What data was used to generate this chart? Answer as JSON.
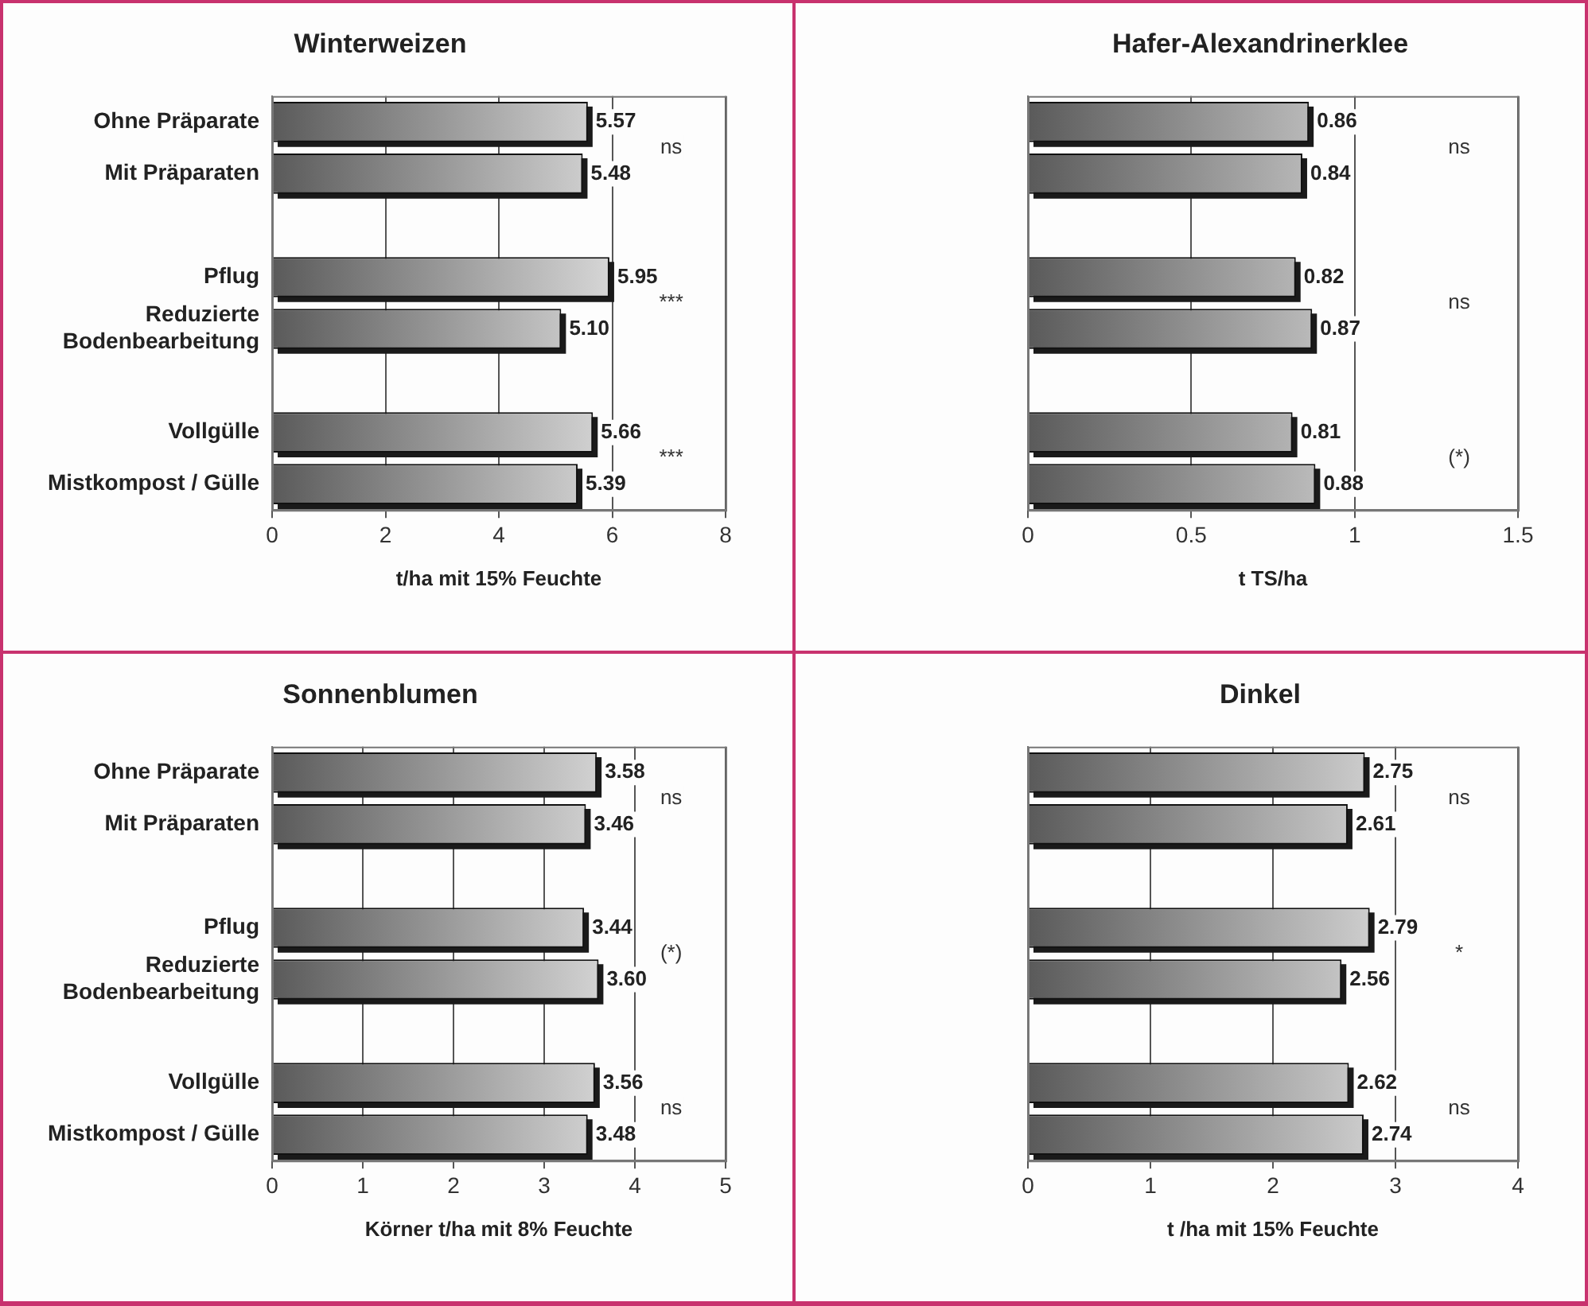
{
  "chart_data": [
    {
      "type": "bar",
      "orientation": "horizontal",
      "title": "Winterweizen",
      "xlabel": "t/ha mit 15% Feuchte",
      "categories": [
        "Ohne Präparate",
        "Mit Präparaten",
        null,
        "Pflug",
        "Reduzierte Bodenbearbeitung",
        null,
        "Vollgülle",
        "Mistkompost / Gülle"
      ],
      "values": [
        5.57,
        5.48,
        null,
        5.95,
        5.1,
        null,
        5.66,
        5.39
      ],
      "value_labels": [
        "5.57",
        "5.48",
        null,
        "5.95",
        "5.10",
        null,
        "5.66",
        "5.39"
      ],
      "color": "#c8c8c8",
      "xlim": [
        0,
        8
      ],
      "xticks": [
        0,
        2,
        4,
        6,
        8
      ],
      "grid": "x",
      "annotations": [
        "ns",
        "***",
        "***"
      ]
    },
    {
      "type": "bar",
      "orientation": "horizontal",
      "title": "Hafer-Alexandrinerklee",
      "xlabel": "t TS/ha",
      "categories": [
        null,
        null,
        null,
        null,
        null,
        null,
        null,
        null
      ],
      "values": [
        0.86,
        0.84,
        null,
        0.82,
        0.87,
        null,
        0.81,
        0.88
      ],
      "value_labels": [
        "0.86",
        "0.84",
        null,
        "0.82",
        "0.87",
        null,
        "0.81",
        "0.88"
      ],
      "color": "#c8c8c8",
      "xlim": [
        0,
        1.5
      ],
      "xticks": [
        0,
        0.5,
        1,
        1.5
      ],
      "grid": "x",
      "annotations": [
        "ns",
        "ns",
        "(*)"
      ]
    },
    {
      "type": "bar",
      "orientation": "horizontal",
      "title": "Sonnenblumen",
      "xlabel": "Körner t/ha mit 8% Feuchte",
      "categories": [
        "Ohne Präparate",
        "Mit Präparaten",
        null,
        "Pflug",
        "Reduzierte Bodenbearbeitung",
        null,
        "Vollgülle",
        "Mistkompost / Gülle"
      ],
      "values": [
        3.58,
        3.46,
        null,
        3.44,
        3.6,
        null,
        3.56,
        3.48
      ],
      "value_labels": [
        "3.58",
        "3.46",
        null,
        "3.44",
        "3.60",
        null,
        "3.56",
        "3.48"
      ],
      "color": "#c8c8c8",
      "xlim": [
        0,
        5
      ],
      "xticks": [
        0,
        1,
        2,
        3,
        4,
        5
      ],
      "grid": "x",
      "annotations": [
        "ns",
        "(*)",
        "ns"
      ]
    },
    {
      "type": "bar",
      "orientation": "horizontal",
      "title": "Dinkel",
      "xlabel": "t /ha mit 15% Feuchte",
      "categories": [
        null,
        null,
        null,
        null,
        null,
        null,
        null,
        null
      ],
      "values": [
        2.75,
        2.61,
        null,
        2.79,
        2.56,
        null,
        2.62,
        2.74
      ],
      "value_labels": [
        "2.75",
        "2.61",
        null,
        "2.79",
        "2.56",
        null,
        "2.62",
        "2.74"
      ],
      "color": "#c8c8c8",
      "xlim": [
        0,
        4
      ],
      "xticks": [
        0,
        1,
        2,
        3,
        4
      ],
      "grid": "x",
      "annotations": [
        "ns",
        "*",
        "ns"
      ]
    }
  ]
}
